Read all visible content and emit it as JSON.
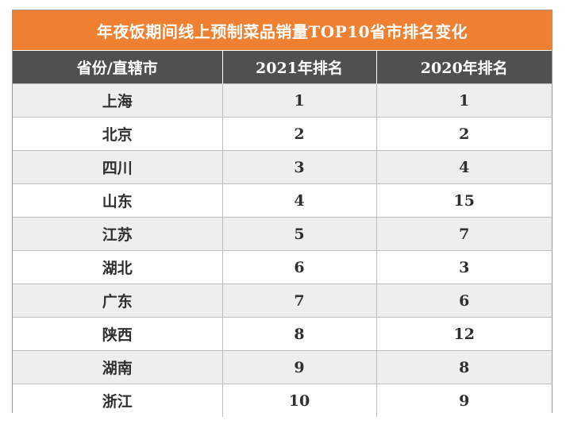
{
  "table": {
    "title": "年夜饭期间线上预制菜品销量TOP10省市排名变化",
    "headers": [
      "省份/直辖市",
      "2021年排名",
      "2020年排名"
    ],
    "rows": [
      [
        "上海",
        "1",
        "1"
      ],
      [
        "北京",
        "2",
        "2"
      ],
      [
        "四川",
        "3",
        "4"
      ],
      [
        "山东",
        "4",
        "15"
      ],
      [
        "江苏",
        "5",
        "7"
      ],
      [
        "湖北",
        "6",
        "3"
      ],
      [
        "广东",
        "7",
        "6"
      ],
      [
        "陕西",
        "8",
        "12"
      ],
      [
        "湖南",
        "9",
        "8"
      ],
      [
        "浙江",
        "10",
        "9"
      ]
    ]
  },
  "chart_data": {
    "type": "table",
    "title": "年夜饭期间线上预制菜品销量TOP10省市排名变化",
    "columns": [
      "省份/直辖市",
      "2021年排名",
      "2020年排名"
    ],
    "rows": [
      {
        "region": "上海",
        "rank_2021": 1,
        "rank_2020": 1
      },
      {
        "region": "北京",
        "rank_2021": 2,
        "rank_2020": 2
      },
      {
        "region": "四川",
        "rank_2021": 3,
        "rank_2020": 4
      },
      {
        "region": "山东",
        "rank_2021": 4,
        "rank_2020": 15
      },
      {
        "region": "江苏",
        "rank_2021": 5,
        "rank_2020": 7
      },
      {
        "region": "湖北",
        "rank_2021": 6,
        "rank_2020": 3
      },
      {
        "region": "广东",
        "rank_2021": 7,
        "rank_2020": 6
      },
      {
        "region": "陕西",
        "rank_2021": 8,
        "rank_2020": 12
      },
      {
        "region": "湖南",
        "rank_2021": 9,
        "rank_2020": 8
      },
      {
        "region": "浙江",
        "rank_2021": 10,
        "rank_2020": 9
      }
    ],
    "colors": {
      "title_background": "#ef7f31",
      "header_background": "#505050",
      "stripe": "#eeeeee"
    }
  }
}
